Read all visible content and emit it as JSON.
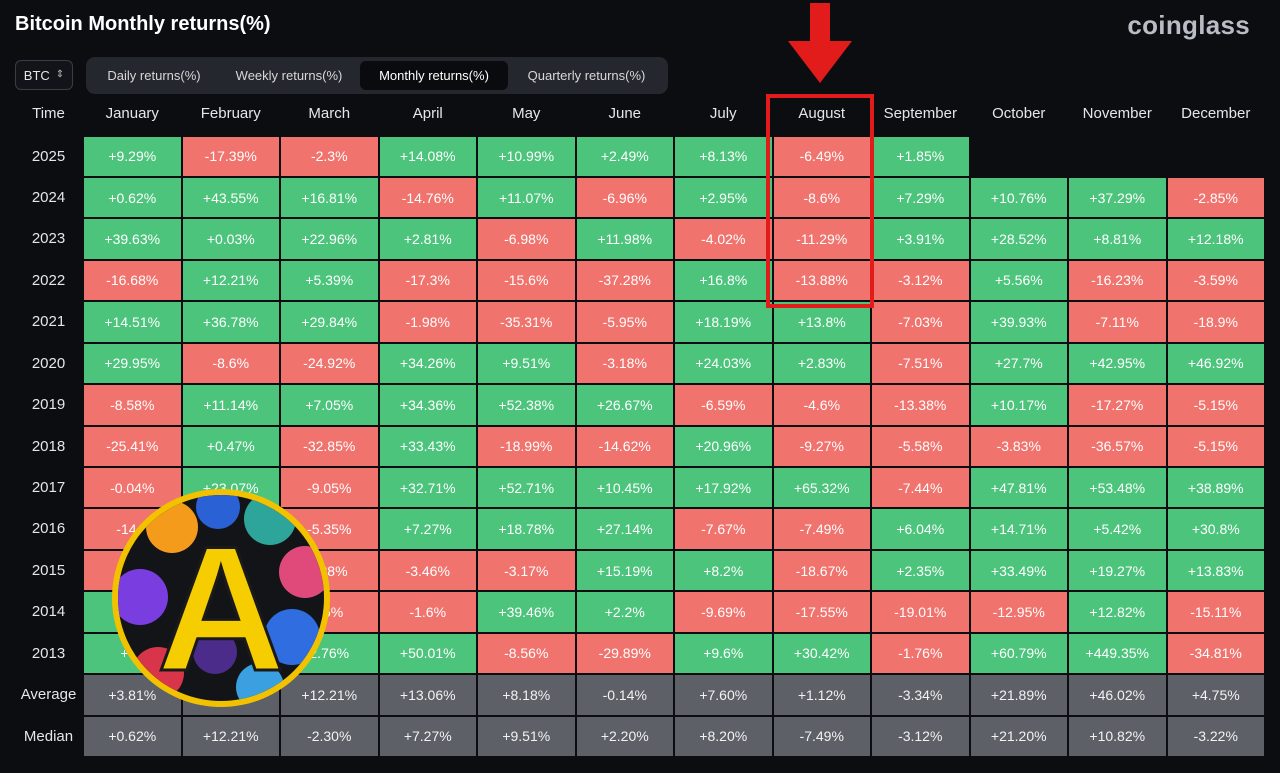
{
  "title": "Bitcoin Monthly returns(%)",
  "brand": "coinglass",
  "asset_select": {
    "value": "BTC"
  },
  "tabs": [
    {
      "label": "Daily returns(%)",
      "active": false
    },
    {
      "label": "Weekly returns(%)",
      "active": false
    },
    {
      "label": "Monthly returns(%)",
      "active": true
    },
    {
      "label": "Quarterly returns(%)",
      "active": false
    }
  ],
  "table": {
    "time_header": "Time",
    "months": [
      "January",
      "February",
      "March",
      "April",
      "May",
      "June",
      "July",
      "August",
      "September",
      "October",
      "November",
      "December"
    ],
    "highlighted_month": "August",
    "rows": [
      {
        "label": "2025",
        "values": [
          "+9.29%",
          "-17.39%",
          "-2.3%",
          "+14.08%",
          "+10.99%",
          "+2.49%",
          "+8.13%",
          "-6.49%",
          "+1.85%",
          "",
          "",
          ""
        ]
      },
      {
        "label": "2024",
        "values": [
          "+0.62%",
          "+43.55%",
          "+16.81%",
          "-14.76%",
          "+11.07%",
          "-6.96%",
          "+2.95%",
          "-8.6%",
          "+7.29%",
          "+10.76%",
          "+37.29%",
          "-2.85%"
        ]
      },
      {
        "label": "2023",
        "values": [
          "+39.63%",
          "+0.03%",
          "+22.96%",
          "+2.81%",
          "-6.98%",
          "+11.98%",
          "-4.02%",
          "-11.29%",
          "+3.91%",
          "+28.52%",
          "+8.81%",
          "+12.18%"
        ]
      },
      {
        "label": "2022",
        "values": [
          "-16.68%",
          "+12.21%",
          "+5.39%",
          "-17.3%",
          "-15.6%",
          "-37.28%",
          "+16.8%",
          "-13.88%",
          "-3.12%",
          "+5.56%",
          "-16.23%",
          "-3.59%"
        ]
      },
      {
        "label": "2021",
        "values": [
          "+14.51%",
          "+36.78%",
          "+29.84%",
          "-1.98%",
          "-35.31%",
          "-5.95%",
          "+18.19%",
          "+13.8%",
          "-7.03%",
          "+39.93%",
          "-7.11%",
          "-18.9%"
        ]
      },
      {
        "label": "2020",
        "values": [
          "+29.95%",
          "-8.6%",
          "-24.92%",
          "+34.26%",
          "+9.51%",
          "-3.18%",
          "+24.03%",
          "+2.83%",
          "-7.51%",
          "+27.7%",
          "+42.95%",
          "+46.92%"
        ]
      },
      {
        "label": "2019",
        "values": [
          "-8.58%",
          "+11.14%",
          "+7.05%",
          "+34.36%",
          "+52.38%",
          "+26.67%",
          "-6.59%",
          "-4.6%",
          "-13.38%",
          "+10.17%",
          "-17.27%",
          "-5.15%"
        ]
      },
      {
        "label": "2018",
        "values": [
          "-25.41%",
          "+0.47%",
          "-32.85%",
          "+33.43%",
          "-18.99%",
          "-14.62%",
          "+20.96%",
          "-9.27%",
          "-5.58%",
          "-3.83%",
          "-36.57%",
          "-5.15%"
        ]
      },
      {
        "label": "2017",
        "values": [
          "-0.04%",
          "+23.07%",
          "-9.05%",
          "+32.71%",
          "+52.71%",
          "+10.45%",
          "+17.92%",
          "+65.32%",
          "-7.44%",
          "+47.81%",
          "+53.48%",
          "+38.89%"
        ]
      },
      {
        "label": "2016",
        "values": [
          "-14.8",
          "",
          "-5.35%",
          "+7.27%",
          "+18.78%",
          "+27.14%",
          "-7.67%",
          "-7.49%",
          "+6.04%",
          "+14.71%",
          "+5.42%",
          "+30.8%"
        ]
      },
      {
        "label": "2015",
        "values": [
          "-3",
          "",
          "-.28%",
          "-3.46%",
          "-3.17%",
          "+15.19%",
          "+8.2%",
          "-18.67%",
          "+2.35%",
          "+33.49%",
          "+19.27%",
          "+13.83%"
        ]
      },
      {
        "label": "2014",
        "values": [
          "+",
          "",
          "25%",
          "-1.6%",
          "+39.46%",
          "+2.2%",
          "-9.69%",
          "-17.55%",
          "-19.01%",
          "-12.95%",
          "+12.82%",
          "-15.11%"
        ]
      },
      {
        "label": "2013",
        "values": [
          "+44",
          "",
          "2.76%",
          "+50.01%",
          "-8.56%",
          "-29.89%",
          "+9.6%",
          "+30.42%",
          "-1.76%",
          "+60.79%",
          "+449.35%",
          "-34.81%"
        ]
      },
      {
        "label": "Average",
        "values": [
          "+3.81%",
          "",
          "+12.21%",
          "+13.06%",
          "+8.18%",
          "-0.14%",
          "+7.60%",
          "+1.12%",
          "-3.34%",
          "+21.89%",
          "+46.02%",
          "+4.75%"
        ]
      },
      {
        "label": "Median",
        "values": [
          "+0.62%",
          "+12.21%",
          "-2.30%",
          "+7.27%",
          "+9.51%",
          "+2.20%",
          "+8.20%",
          "-7.49%",
          "-3.12%",
          "+21.20%",
          "+10.82%",
          "-3.22%"
        ]
      }
    ],
    "cell_sign_override": {
      "9": [
        1
      ],
      "10": [
        0,
        1,
        2
      ],
      "11": [
        0,
        1,
        2
      ],
      "12": [
        0,
        1,
        2
      ]
    },
    "hidden_colors": {
      "2016": [
        "neg",
        "neg",
        "neg"
      ],
      "2015": [
        "neg",
        "neg",
        "neg"
      ],
      "2014": [
        "pos",
        "neg",
        "neg"
      ],
      "2013": [
        "pos",
        "neg",
        "pos"
      ]
    }
  },
  "badge": {
    "letter": "A"
  },
  "colors": {
    "positive": "#4cc47c",
    "negative": "#f0736e",
    "stat": "#5e6067",
    "highlight": "#e21b1b"
  }
}
